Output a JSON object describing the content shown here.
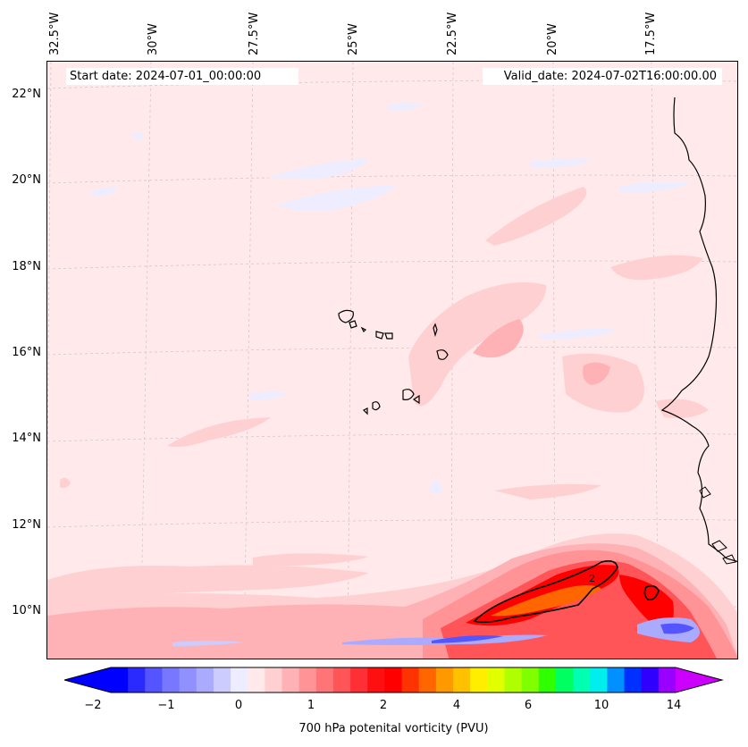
{
  "map": {
    "start_label": "Start date: 2024-07-01_00:00:00",
    "valid_label": "Valid_date: 2024-07-02T16:00:00.00",
    "longitude_labels": [
      "32.5°W",
      "30°W",
      "27.5°W",
      "25°W",
      "22.5°W",
      "20°W",
      "17.5°W"
    ],
    "latitude_labels": [
      "22°N",
      "20°N",
      "18°N",
      "16°N",
      "14°N",
      "12°N",
      "10°N"
    ],
    "contour_label": "2"
  },
  "colorbar": {
    "title": "700 hPa potenital vorticity (PVU)",
    "tick_labels": [
      "−2",
      "−1",
      "0",
      "1",
      "2",
      "4",
      "6",
      "10",
      "14"
    ],
    "colors": [
      "#0000ff",
      "#2a2aff",
      "#5555ff",
      "#7777ff",
      "#9090ff",
      "#aaaaff",
      "#ccccff",
      "#ededff",
      "#ffe9ea",
      "#ffd0d2",
      "#ffb2b5",
      "#ff9396",
      "#ff7477",
      "#ff5558",
      "#ff3035",
      "#ff1010",
      "#ff0000",
      "#ff3300",
      "#ff6600",
      "#ff9900",
      "#ffc000",
      "#ffee00",
      "#e0ff00",
      "#b0ff00",
      "#80ff00",
      "#30ff00",
      "#00ff60",
      "#00ffb0",
      "#00eeee",
      "#0090ff",
      "#0030ff",
      "#3000ff",
      "#9900ff"
    ],
    "over_color": "#cc00ff",
    "under_color": "#0000ff"
  }
}
